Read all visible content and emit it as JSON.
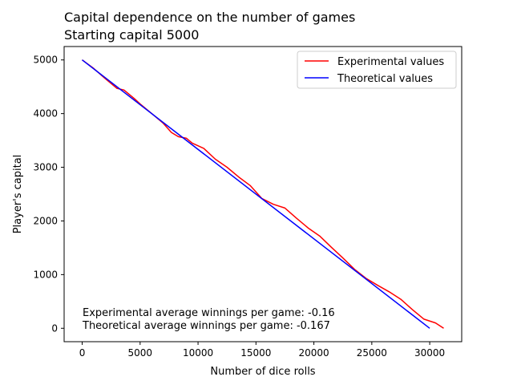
{
  "chart_data": {
    "type": "line",
    "title_lines": [
      "Capital dependence on the number of games",
      "Starting capital 5000"
    ],
    "xlabel": "Number of dice rolls",
    "ylabel": "Player's capital",
    "xlim": [
      -1560,
      32760
    ],
    "ylim": [
      -250,
      5250
    ],
    "x_ticks": [
      0,
      5000,
      10000,
      15000,
      20000,
      25000,
      30000
    ],
    "y_ticks": [
      0,
      1000,
      2000,
      3000,
      4000,
      5000
    ],
    "grid": false,
    "legend_position": "upper-right",
    "series": [
      {
        "name": "Experimental values",
        "color": "#ff0000",
        "x": [
          0,
          1000,
          2000,
          3000,
          3600,
          4500,
          5000,
          6000,
          7000,
          7700,
          8300,
          9000,
          9500,
          10500,
          11500,
          12500,
          13500,
          14500,
          15500,
          16500,
          17500,
          18500,
          19500,
          20500,
          21500,
          22500,
          23500,
          24500,
          25500,
          26500,
          27500,
          28500,
          29500,
          30500,
          31200
        ],
        "y": [
          5000,
          4840,
          4650,
          4470,
          4440,
          4280,
          4180,
          4000,
          3820,
          3650,
          3570,
          3540,
          3450,
          3350,
          3150,
          3000,
          2820,
          2660,
          2420,
          2310,
          2240,
          2050,
          1870,
          1720,
          1510,
          1310,
          1100,
          930,
          800,
          680,
          540,
          350,
          170,
          100,
          0
        ]
      },
      {
        "name": "Theoretical values",
        "color": "#0000ff",
        "x": [
          0,
          30000
        ],
        "y": [
          5000,
          0
        ]
      }
    ],
    "annotations": [
      "Experimental average winnings per game: -0.16",
      "Theoretical average winnings per game: -0.167"
    ]
  }
}
